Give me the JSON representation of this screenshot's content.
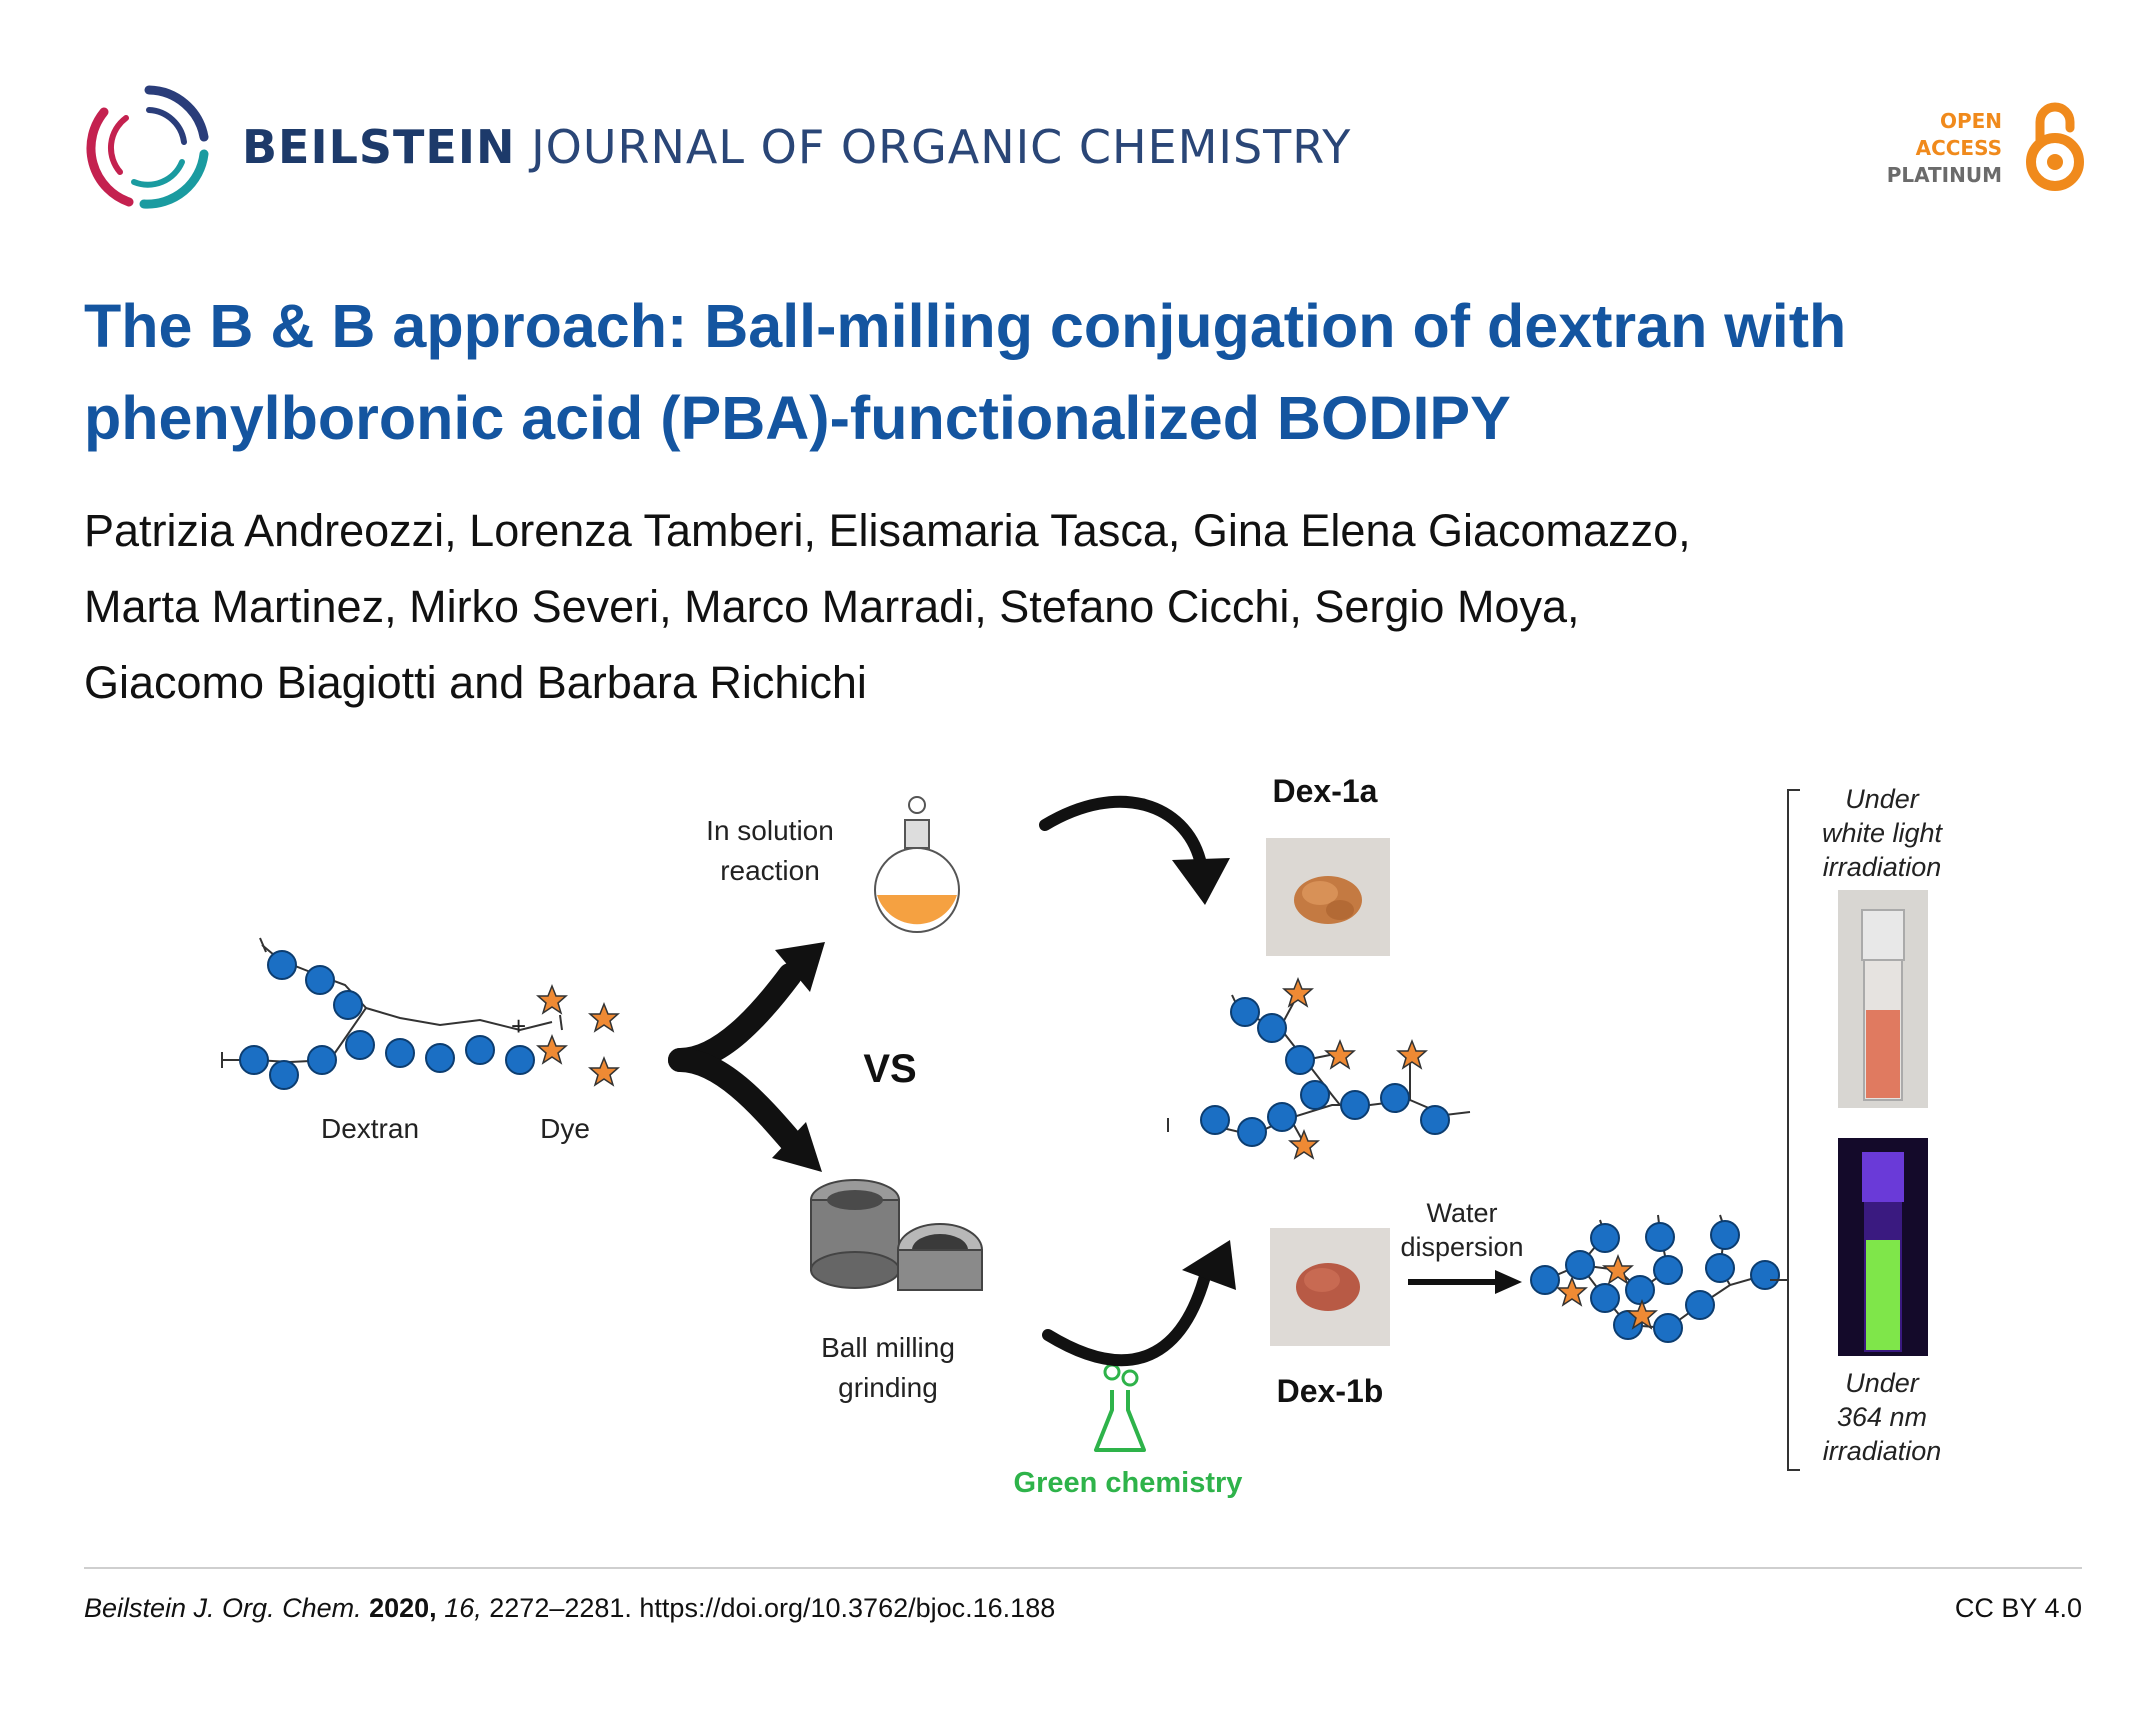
{
  "header": {
    "journal_bold": "BEILSTEIN",
    "journal_rest": "JOURNAL OF ORGANIC CHEMISTRY",
    "oa_line1": "OPEN",
    "oa_line2": "ACCESS",
    "oa_line3": "PLATINUM"
  },
  "article": {
    "title": "The B & B approach: Ball-milling conjugation of dextran with phenylboronic acid (PBA)-functionalized BODIPY",
    "authors_line1": "Patrizia Andreozzi, Lorenza Tamberi, Elisamaria Tasca, Gina Elena Giacomazzo,",
    "authors_line2": "Marta Martinez, Mirko Severi, Marco Marradi, Stefano Cicchi, Sergio Moya,",
    "authors_line3": "Giacomo Biagiotti and Barbara Richichi"
  },
  "graphic": {
    "label_dextran": "Dextran",
    "label_dye": "Dye",
    "label_plus": "+",
    "label_in_solution_1": "In solution",
    "label_in_solution_2": "reaction",
    "label_vs": "VS",
    "label_ball_milling_1": "Ball milling",
    "label_ball_milling_2": "grinding",
    "label_green": "Green chemistry",
    "label_dex1a": "Dex-1a",
    "label_dex1b": "Dex-1b",
    "label_water_1": "Water",
    "label_water_2": "dispersion",
    "label_white_1": "Under",
    "label_white_2": "white light",
    "label_white_3": "irradiation",
    "label_uv_1": "Under",
    "label_uv_2": "364 nm",
    "label_uv_3": "irradiation",
    "colors": {
      "bead": "#1b6fc4",
      "star": "#ef8a34",
      "green": "#2eb34a",
      "flask": "#f5a141"
    }
  },
  "footer": {
    "journal_abbrev": "Beilstein J. Org. Chem.",
    "year": "2020,",
    "volume": "16,",
    "pages_doi": "2272–2281. https://doi.org/10.3762/bjoc.16.188",
    "license": "CC BY 4.0"
  }
}
